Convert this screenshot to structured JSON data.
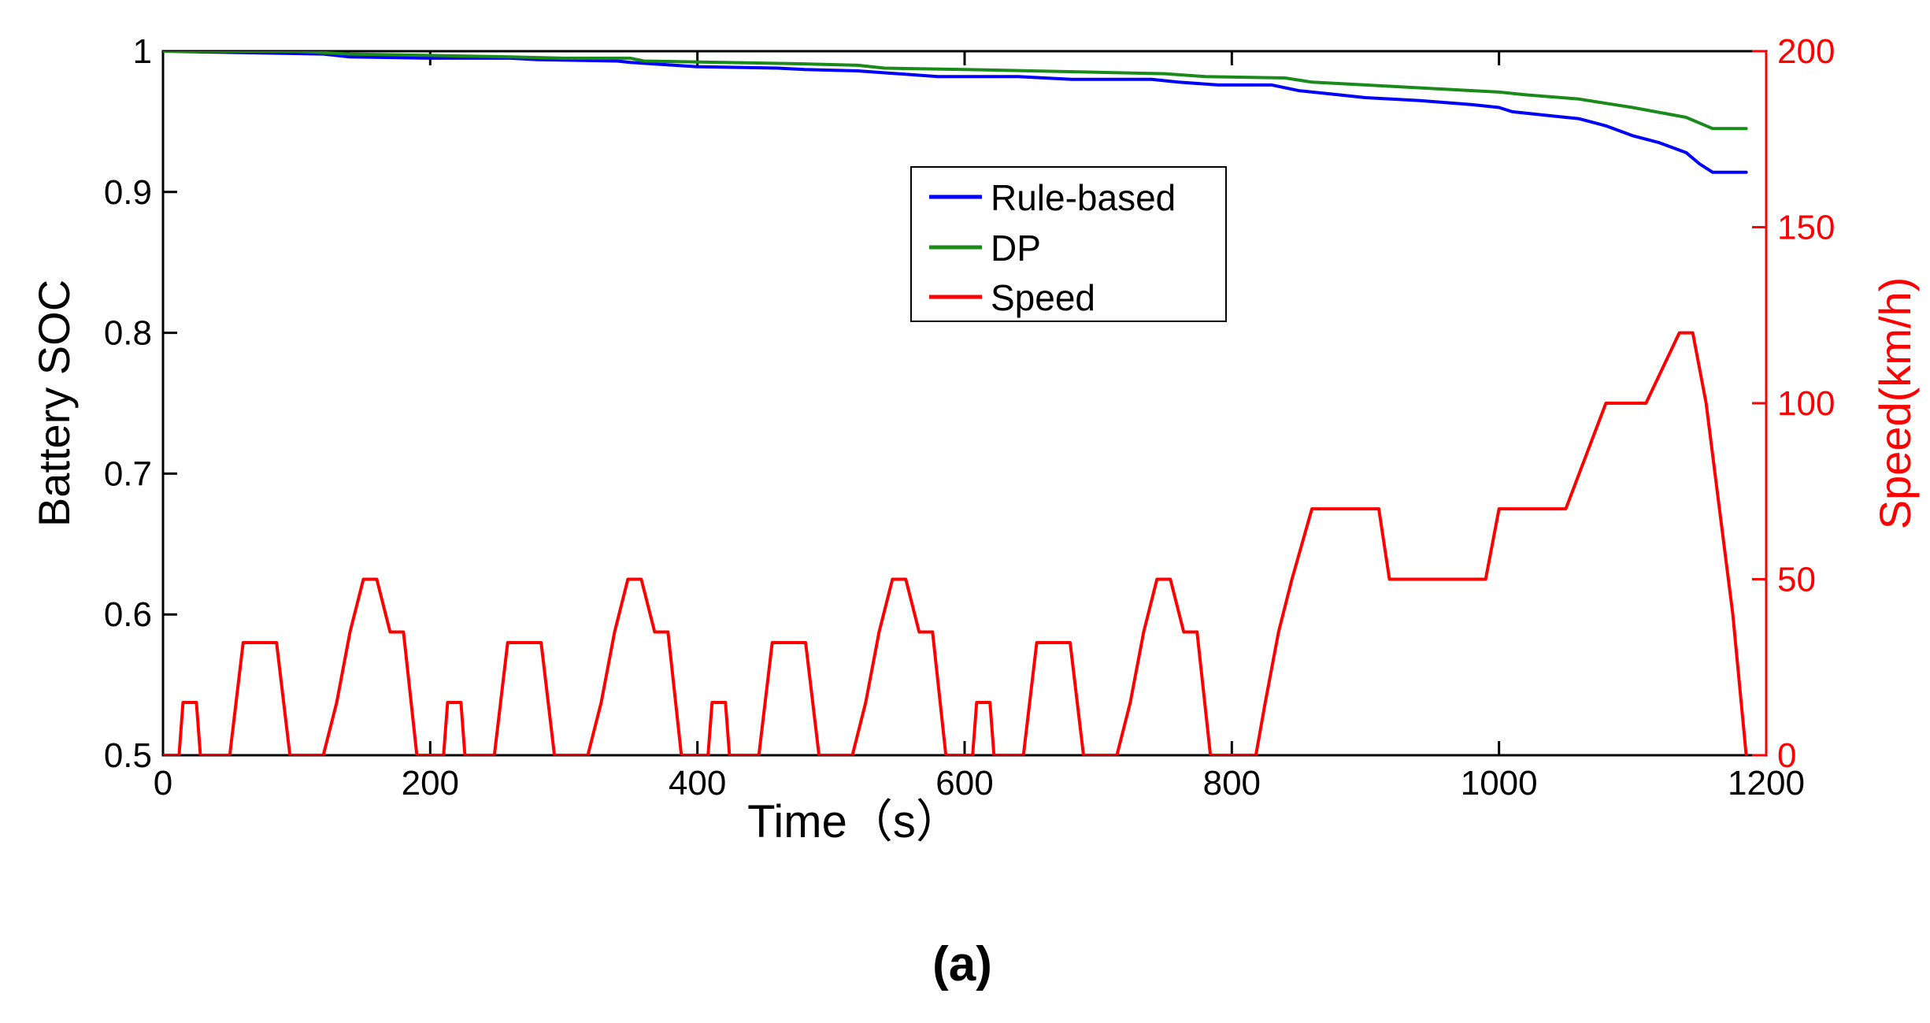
{
  "chart_data": {
    "type": "line",
    "title": "",
    "xlabel": "Time（s）",
    "ylabel": "Battery SOC",
    "y2label": "Speed(km/h)",
    "xlim": [
      0,
      1200
    ],
    "ylim": [
      0.5,
      1
    ],
    "y2lim": [
      0,
      200
    ],
    "x_ticks": [
      "0",
      "200",
      "400",
      "600",
      "800",
      "1000",
      "1200"
    ],
    "y_ticks": [
      "0.5",
      "0.6",
      "0.7",
      "0.8",
      "0.9",
      "1"
    ],
    "y2_ticks": [
      "0",
      "50",
      "100",
      "150",
      "200"
    ],
    "grid": false,
    "legend_position": "upper-center",
    "panel_label": "(a)",
    "colors": {
      "rule": "#0000ff",
      "dp": "#1a8a1a",
      "speed": "#ff0000",
      "axis": "#000000"
    },
    "series": [
      {
        "name": "Rule-based",
        "axis": "left",
        "color": "#0000ff",
        "points": [
          [
            0,
            1
          ],
          [
            120,
            0.998
          ],
          [
            140,
            0.996
          ],
          [
            200,
            0.995
          ],
          [
            260,
            0.995
          ],
          [
            280,
            0.994
          ],
          [
            340,
            0.993
          ],
          [
            350,
            0.992
          ],
          [
            400,
            0.989
          ],
          [
            460,
            0.988
          ],
          [
            480,
            0.987
          ],
          [
            520,
            0.986
          ],
          [
            550,
            0.984
          ],
          [
            580,
            0.982
          ],
          [
            640,
            0.982
          ],
          [
            680,
            0.98
          ],
          [
            740,
            0.98
          ],
          [
            760,
            0.978
          ],
          [
            790,
            0.976
          ],
          [
            830,
            0.976
          ],
          [
            850,
            0.972
          ],
          [
            880,
            0.969
          ],
          [
            900,
            0.967
          ],
          [
            940,
            0.965
          ],
          [
            980,
            0.962
          ],
          [
            1000,
            0.96
          ],
          [
            1010,
            0.957
          ],
          [
            1040,
            0.954
          ],
          [
            1060,
            0.952
          ],
          [
            1080,
            0.947
          ],
          [
            1100,
            0.94
          ],
          [
            1120,
            0.935
          ],
          [
            1140,
            0.928
          ],
          [
            1150,
            0.92
          ],
          [
            1160,
            0.914
          ],
          [
            1185,
            0.914
          ]
        ]
      },
      {
        "name": "DP",
        "axis": "left",
        "color": "#1a8a1a",
        "points": [
          [
            0,
            1
          ],
          [
            100,
            1
          ],
          [
            140,
            0.998
          ],
          [
            200,
            0.997
          ],
          [
            260,
            0.996
          ],
          [
            300,
            0.995
          ],
          [
            350,
            0.995
          ],
          [
            360,
            0.993
          ],
          [
            420,
            0.992
          ],
          [
            480,
            0.991
          ],
          [
            520,
            0.99
          ],
          [
            540,
            0.988
          ],
          [
            600,
            0.987
          ],
          [
            650,
            0.986
          ],
          [
            700,
            0.985
          ],
          [
            750,
            0.984
          ],
          [
            780,
            0.982
          ],
          [
            840,
            0.981
          ],
          [
            860,
            0.978
          ],
          [
            900,
            0.976
          ],
          [
            940,
            0.974
          ],
          [
            980,
            0.972
          ],
          [
            1000,
            0.971
          ],
          [
            1020,
            0.969
          ],
          [
            1060,
            0.966
          ],
          [
            1080,
            0.963
          ],
          [
            1100,
            0.96
          ],
          [
            1140,
            0.953
          ],
          [
            1160,
            0.945
          ],
          [
            1185,
            0.945
          ]
        ]
      },
      {
        "name": "Speed",
        "axis": "right",
        "color": "#ff0000",
        "points": [
          [
            0,
            0
          ],
          [
            12,
            0
          ],
          [
            15,
            15
          ],
          [
            25,
            15
          ],
          [
            28,
            0
          ],
          [
            50,
            0
          ],
          [
            60,
            32
          ],
          [
            85,
            32
          ],
          [
            95,
            0
          ],
          [
            120,
            0
          ],
          [
            130,
            15
          ],
          [
            140,
            35
          ],
          [
            150,
            50
          ],
          [
            160,
            50
          ],
          [
            170,
            35
          ],
          [
            180,
            35
          ],
          [
            190,
            0
          ],
          [
            210,
            0
          ],
          [
            213,
            15
          ],
          [
            223,
            15
          ],
          [
            226,
            0
          ],
          [
            248,
            0
          ],
          [
            258,
            32
          ],
          [
            283,
            32
          ],
          [
            293,
            0
          ],
          [
            318,
            0
          ],
          [
            328,
            15
          ],
          [
            338,
            35
          ],
          [
            348,
            50
          ],
          [
            358,
            50
          ],
          [
            368,
            35
          ],
          [
            378,
            35
          ],
          [
            388,
            0
          ],
          [
            408,
            0
          ],
          [
            411,
            15
          ],
          [
            421,
            15
          ],
          [
            424,
            0
          ],
          [
            446,
            0
          ],
          [
            456,
            32
          ],
          [
            481,
            32
          ],
          [
            491,
            0
          ],
          [
            516,
            0
          ],
          [
            526,
            15
          ],
          [
            536,
            35
          ],
          [
            546,
            50
          ],
          [
            556,
            50
          ],
          [
            566,
            35
          ],
          [
            576,
            35
          ],
          [
            586,
            0
          ],
          [
            606,
            0
          ],
          [
            609,
            15
          ],
          [
            619,
            15
          ],
          [
            622,
            0
          ],
          [
            644,
            0
          ],
          [
            654,
            32
          ],
          [
            679,
            32
          ],
          [
            689,
            0
          ],
          [
            714,
            0
          ],
          [
            724,
            15
          ],
          [
            734,
            35
          ],
          [
            744,
            50
          ],
          [
            754,
            50
          ],
          [
            764,
            35
          ],
          [
            774,
            35
          ],
          [
            784,
            0
          ],
          [
            818,
            0
          ],
          [
            825,
            15
          ],
          [
            835,
            35
          ],
          [
            845,
            50
          ],
          [
            860,
            70
          ],
          [
            910,
            70
          ],
          [
            918,
            50
          ],
          [
            990,
            50
          ],
          [
            1000,
            70
          ],
          [
            1050,
            70
          ],
          [
            1080,
            100
          ],
          [
            1110,
            100
          ],
          [
            1135,
            120
          ],
          [
            1145,
            120
          ],
          [
            1155,
            100
          ],
          [
            1165,
            70
          ],
          [
            1175,
            40
          ],
          [
            1185,
            0
          ]
        ]
      }
    ]
  }
}
